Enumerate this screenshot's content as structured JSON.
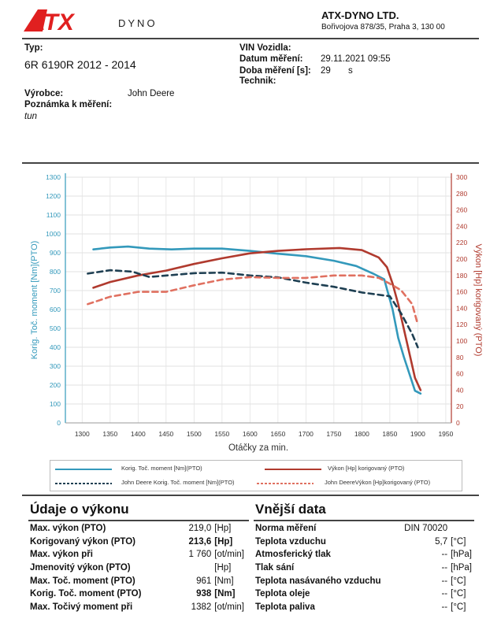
{
  "header": {
    "logo_text": "ATX",
    "logo_sub": "DYNO",
    "company": "ATX-DYNO LTD.",
    "address": "Bořivojova 878/35, Praha 3, 130 00"
  },
  "vehicle": {
    "type_label": "Typ:",
    "type_value": "6R 6190R 2012 - 2014",
    "manufacturer_label": "Výrobce:",
    "manufacturer_value": "John Deere",
    "note_label": "Poznámka k měření:",
    "note_value": "tun"
  },
  "measurement": {
    "vin_label": "VIN Vozidla:",
    "date_label": "Datum měření:",
    "date_value": "29.11.2021 09:55",
    "duration_label": "Doba měření [s]:",
    "duration_value": "29",
    "duration_unit": "s",
    "tech_label": "Technik:"
  },
  "chart_data": {
    "type": "line",
    "xlabel": "Otáčky za min.",
    "ylabel_left": "Korig. Toč. moment [Nm](PTO)",
    "ylabel_right": "Výkon [Hp] korigovaný (PTO)",
    "xlim": [
      1270,
      1960
    ],
    "x_ticks": [
      1300,
      1350,
      1400,
      1450,
      1500,
      1550,
      1600,
      1650,
      1700,
      1750,
      1800,
      1850,
      1900,
      1950
    ],
    "ylim_left": [
      0,
      1300
    ],
    "y_ticks_left": [
      0,
      100,
      200,
      300,
      400,
      500,
      600,
      700,
      800,
      900,
      1000,
      1100,
      1200,
      1300
    ],
    "ylim_right": [
      0,
      300
    ],
    "y_ticks_right": [
      0,
      20,
      40,
      60,
      80,
      100,
      120,
      140,
      160,
      180,
      200,
      220,
      240,
      260,
      280,
      300
    ],
    "grid": true,
    "legend_position": "bottom",
    "series": [
      {
        "name": "Korig. Toč. moment [Nm](PTO)",
        "axis": "left",
        "color": "#3399bb",
        "dash": "solid",
        "x": [
          1320,
          1350,
          1382,
          1420,
          1460,
          1500,
          1550,
          1600,
          1650,
          1700,
          1750,
          1790,
          1820,
          1840,
          1855,
          1865,
          1875,
          1885,
          1895,
          1905
        ],
        "y": [
          918,
          928,
          933,
          922,
          918,
          922,
          922,
          910,
          895,
          882,
          858,
          830,
          790,
          760,
          600,
          450,
          350,
          260,
          170,
          155
        ]
      },
      {
        "name": "Výkon [Hp] korigovaný (PTO)",
        "axis": "right",
        "color": "#b03a2e",
        "dash": "solid",
        "x": [
          1320,
          1350,
          1400,
          1450,
          1500,
          1550,
          1600,
          1650,
          1700,
          1760,
          1800,
          1830,
          1845,
          1855,
          1865,
          1875,
          1885,
          1895,
          1905
        ],
        "y": [
          165,
          172,
          180,
          186,
          194,
          201,
          207,
          210,
          212,
          213.6,
          211,
          202,
          190,
          170,
          145,
          115,
          85,
          55,
          40
        ]
      },
      {
        "name": "John Deere Korig. Toč. moment [Nm](PTO)",
        "axis": "left",
        "color": "#1e3f52",
        "dash": "dashed",
        "x": [
          1310,
          1350,
          1390,
          1420,
          1460,
          1500,
          1550,
          1600,
          1650,
          1700,
          1750,
          1800,
          1850,
          1870,
          1890,
          1900
        ],
        "y": [
          790,
          808,
          800,
          772,
          782,
          792,
          795,
          780,
          770,
          742,
          720,
          690,
          670,
          580,
          470,
          400
        ]
      },
      {
        "name": "John DeereVýkon [Hp]korigovaný (PTO)",
        "axis": "right",
        "color": "#e07060",
        "dash": "dashed",
        "x": [
          1310,
          1350,
          1400,
          1450,
          1500,
          1550,
          1600,
          1650,
          1700,
          1750,
          1800,
          1830,
          1850,
          1870,
          1890,
          1900
        ],
        "y": [
          145,
          154,
          160,
          160,
          168,
          175,
          178,
          177,
          177,
          180,
          180,
          177,
          170,
          162,
          145,
          120
        ]
      }
    ]
  },
  "performance": {
    "title": "Údaje o výkonu",
    "rows": [
      {
        "label": "Max. výkon (PTO)",
        "value": "219,0",
        "unit": "[Hp]",
        "bold": false
      },
      {
        "label": "Korigovaný výkon (PTO)",
        "value": "213,6",
        "unit": "[Hp]",
        "bold": true
      },
      {
        "label": "Max. výkon při",
        "value": "1 760",
        "unit": "[ot/min]",
        "bold": false
      },
      {
        "label": "Jmenovitý výkon (PTO)",
        "value": "",
        "unit": "[Hp]",
        "bold": false
      },
      {
        "label": "Max. Toč. moment (PTO)",
        "value": "961",
        "unit": "[Nm]",
        "bold": false
      },
      {
        "label": "Korig. Toč. moment (PTO)",
        "value": "938",
        "unit": "[Nm]",
        "bold": true
      },
      {
        "label": "Max. Točivý moment při",
        "value": "1382",
        "unit": "[ot/min]",
        "bold": false
      }
    ]
  },
  "external": {
    "title": "Vnější data",
    "rows": [
      {
        "label": "Norma měření",
        "value": "DIN 70020",
        "unit": ""
      },
      {
        "label": "Teplota vzduchu",
        "value": "5,7",
        "unit": "[°C]"
      },
      {
        "label": "Atmosferický tlak",
        "value": "--",
        "unit": "[hPa]"
      },
      {
        "label": "Tlak sání",
        "value": "--",
        "unit": "[hPa]"
      },
      {
        "label": "Teplota nasávaného vzduchu",
        "value": "--",
        "unit": "[°C]"
      },
      {
        "label": "Teplota oleje",
        "value": "--",
        "unit": "[°C]"
      },
      {
        "label": "Teplota paliva",
        "value": "--",
        "unit": "[°C]"
      }
    ]
  }
}
